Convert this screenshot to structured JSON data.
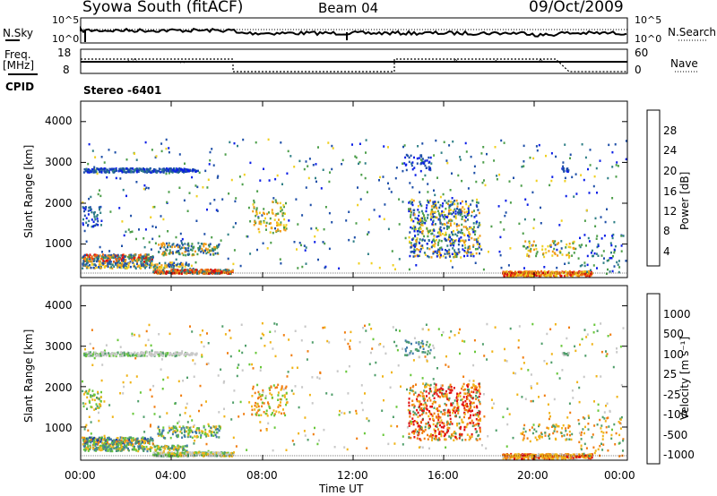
{
  "header": {
    "station": "Syowa South (fitACF)",
    "beam": "Beam 04",
    "date": "09/Oct/2009"
  },
  "side_labels": {
    "nsky": "N.Sky",
    "nsky_ticks": [
      "10^5",
      "10^0"
    ],
    "nsearch": "N.Search",
    "nsearch_ticks": [
      "10^5",
      "10^0"
    ],
    "freq": "Freq.",
    "freq_unit": "[MHz]",
    "freq_ticks": [
      "18",
      "8"
    ],
    "nave": "Nave",
    "nave_ticks": [
      "60",
      "0"
    ],
    "cpid": "CPID",
    "cpid_value": "Stereo -6401"
  },
  "chart_data": [
    {
      "type": "heatmap",
      "name": "power",
      "ylabel": "Slant Range [km]",
      "yticks": [
        "4000",
        "3000",
        "2000",
        "1000"
      ],
      "ylim": [
        180,
        4500
      ],
      "colorbar_label": "Power [dB]",
      "colorbar_ticks": [
        "28",
        "24",
        "20",
        "16",
        "12",
        "8",
        "4"
      ],
      "colors": [
        "#0a1ee6",
        "#1e4fa8",
        "#2f7f86",
        "#4d9e4a",
        "#f0d020",
        "#f09b18",
        "#ee6310",
        "#e01010"
      ]
    },
    {
      "type": "heatmap",
      "name": "velocity",
      "ylabel": "Slant Range [km]",
      "yticks": [
        "4000",
        "3000",
        "2000",
        "1000"
      ],
      "ylim": [
        180,
        4500
      ],
      "colorbar_label": "Velocity [m s⁻¹]",
      "colorbar_ticks": [
        "1000",
        "500",
        "100",
        "25",
        "-25",
        "-100",
        "-500",
        "-1000"
      ],
      "colors": [
        "#1f3fa0",
        "#3f7aa8",
        "#4f9e6a",
        "#68c73a",
        "#c8c8c8",
        "#f0b418",
        "#f07d10",
        "#e01010"
      ]
    }
  ],
  "xaxis": {
    "ticks": [
      "00:00",
      "04:00",
      "08:00",
      "12:00",
      "16:00",
      "20:00",
      "00:00"
    ],
    "label": "Time UT"
  }
}
